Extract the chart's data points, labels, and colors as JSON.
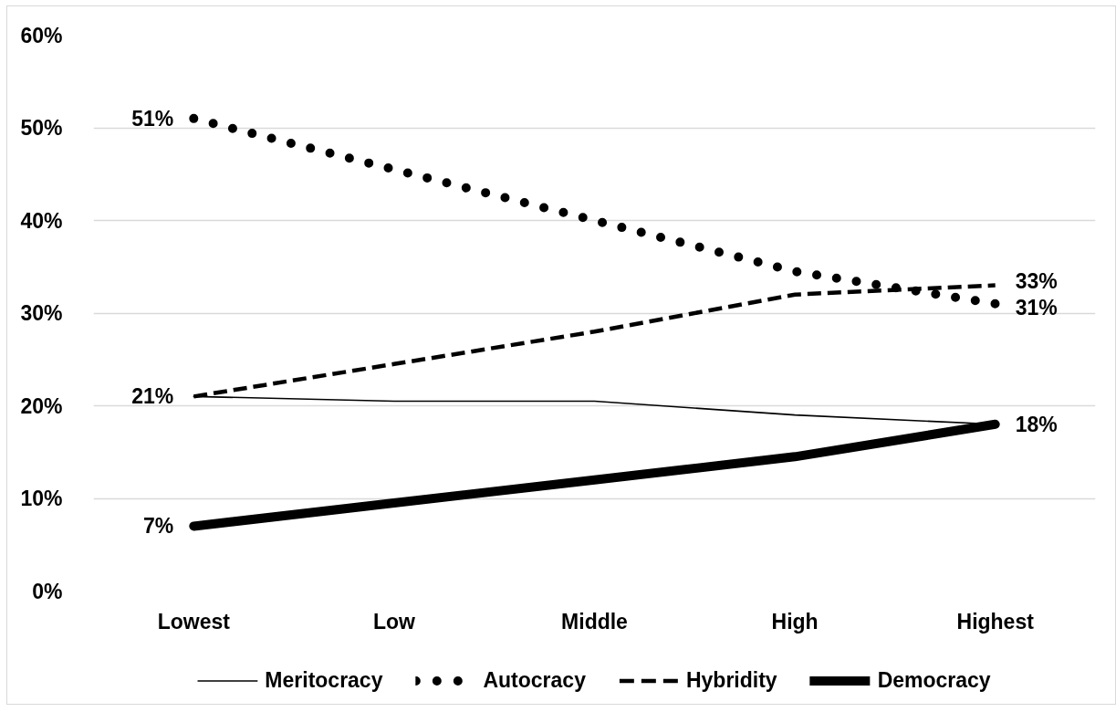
{
  "chart_data": {
    "type": "line",
    "categories": [
      "Lowest",
      "Low",
      "Middle",
      "High",
      "Highest"
    ],
    "series": [
      {
        "name": "Meritocracy",
        "color": "#000000",
        "line_style": "solid",
        "values": [
          21,
          20.5,
          20.5,
          19,
          18
        ],
        "value_labels": [
          "21%",
          null,
          null,
          null,
          null
        ]
      },
      {
        "name": "Autocracy",
        "color": "#000000",
        "line_style": "dotted",
        "values": [
          51,
          45.5,
          40,
          34.5,
          31
        ],
        "value_labels": [
          "51%",
          null,
          null,
          null,
          "31%"
        ]
      },
      {
        "name": "Hybridity",
        "color": "#000000",
        "line_style": "dashed",
        "values": [
          21,
          24.5,
          28,
          32,
          33
        ],
        "value_labels": [
          null,
          null,
          null,
          null,
          "33%"
        ]
      },
      {
        "name": "Democracy",
        "color": "#000000",
        "line_style": "solid",
        "values": [
          7,
          9.5,
          12,
          14.5,
          18
        ],
        "value_labels": [
          "7%",
          null,
          null,
          null,
          "18%"
        ]
      }
    ],
    "ylim": [
      0,
      60
    ],
    "yticks": [
      {
        "value": 0,
        "label": "0%"
      },
      {
        "value": 10,
        "label": "10%"
      },
      {
        "value": 20,
        "label": "20%"
      },
      {
        "value": 30,
        "label": "30%"
      },
      {
        "value": 40,
        "label": "40%"
      },
      {
        "value": 50,
        "label": "50%"
      },
      {
        "value": 60,
        "label": "60%"
      }
    ],
    "grid": "y",
    "legend": "bottom"
  }
}
